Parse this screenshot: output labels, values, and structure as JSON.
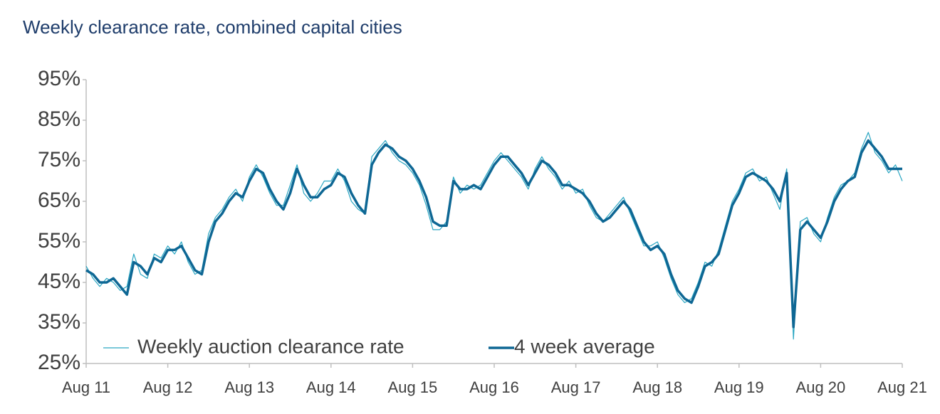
{
  "chart_data": {
    "type": "line",
    "title": "Weekly clearance rate, combined capital cities",
    "categories": [
      "Aug 11",
      null,
      null,
      null,
      null,
      null,
      null,
      null,
      null,
      null,
      null,
      null,
      "Aug 12",
      null,
      null,
      null,
      null,
      null,
      null,
      null,
      null,
      null,
      null,
      null,
      "Aug 13",
      null,
      null,
      null,
      null,
      null,
      null,
      null,
      null,
      null,
      null,
      null,
      "Aug 14",
      null,
      null,
      null,
      null,
      null,
      null,
      null,
      null,
      null,
      null,
      null,
      "Aug 15",
      null,
      null,
      null,
      null,
      null,
      null,
      null,
      null,
      null,
      null,
      null,
      "Aug 16",
      null,
      null,
      null,
      null,
      null,
      null,
      null,
      null,
      null,
      null,
      null,
      "Aug 17",
      null,
      null,
      null,
      null,
      null,
      null,
      null,
      null,
      null,
      null,
      null,
      "Aug 18",
      null,
      null,
      null,
      null,
      null,
      null,
      null,
      null,
      null,
      null,
      null,
      "Aug 19",
      null,
      null,
      null,
      null,
      null,
      null,
      null,
      null,
      null,
      null,
      null,
      "Aug 20",
      null,
      null,
      null,
      null,
      null,
      null,
      null,
      null,
      null,
      null,
      null,
      "Aug 21"
    ],
    "series": [
      {
        "name": "Weekly auction clearance rate",
        "color": "#2aa6c2",
        "values": [
          49,
          46,
          44,
          46,
          45,
          43,
          44,
          52,
          47,
          46,
          52,
          51,
          54,
          52,
          55,
          50,
          47,
          48,
          57,
          61,
          63,
          66,
          68,
          65,
          71,
          74,
          71,
          67,
          64,
          64,
          69,
          74,
          67,
          65,
          67,
          70,
          70,
          73,
          70,
          65,
          63,
          62,
          76,
          78,
          80,
          77,
          75,
          74,
          72,
          69,
          64,
          58,
          58,
          60,
          71,
          67,
          69,
          68,
          69,
          72,
          75,
          77,
          75,
          73,
          71,
          68,
          73,
          76,
          73,
          71,
          68,
          70,
          67,
          68,
          64,
          61,
          60,
          62,
          64,
          66,
          62,
          58,
          54,
          54,
          55,
          51,
          46,
          42,
          40,
          41,
          45,
          50,
          49,
          53,
          59,
          65,
          68,
          72,
          73,
          70,
          71,
          67,
          63,
          73,
          31,
          60,
          61,
          57,
          55,
          61,
          66,
          69,
          70,
          72,
          78,
          82,
          77,
          75,
          72,
          74,
          70
        ]
      },
      {
        "name": "4 week average",
        "color": "#0e6794",
        "values": [
          48,
          47,
          45,
          45,
          46,
          44,
          42,
          50,
          49,
          47,
          51,
          50,
          53,
          53,
          54,
          51,
          48,
          47,
          55,
          60,
          62,
          65,
          67,
          66,
          70,
          73,
          72,
          68,
          65,
          63,
          67,
          73,
          69,
          66,
          66,
          68,
          69,
          72,
          71,
          67,
          64,
          62,
          74,
          77,
          79,
          78,
          76,
          75,
          73,
          70,
          66,
          60,
          59,
          59,
          70,
          68,
          68,
          69,
          68,
          71,
          74,
          76,
          76,
          74,
          72,
          69,
          72,
          75,
          74,
          72,
          69,
          69,
          68,
          67,
          65,
          62,
          60,
          61,
          63,
          65,
          63,
          59,
          55,
          53,
          54,
          52,
          47,
          43,
          41,
          40,
          44,
          49,
          50,
          52,
          58,
          64,
          67,
          71,
          72,
          71,
          70,
          68,
          65,
          72,
          34,
          58,
          60,
          58,
          56,
          60,
          65,
          68,
          70,
          71,
          77,
          80,
          78,
          76,
          73,
          73,
          73
        ]
      }
    ],
    "ylim": [
      25,
      95
    ],
    "yticks": [
      {
        "value": 25,
        "label": "25%"
      },
      {
        "value": 35,
        "label": "35%"
      },
      {
        "value": 45,
        "label": "45%"
      },
      {
        "value": 55,
        "label": "55%"
      },
      {
        "value": 65,
        "label": "65%"
      },
      {
        "value": 75,
        "label": "75%"
      },
      {
        "value": 85,
        "label": "85%"
      },
      {
        "value": 95,
        "label": "95%"
      }
    ],
    "grid": false,
    "legend": "bottom-left"
  }
}
